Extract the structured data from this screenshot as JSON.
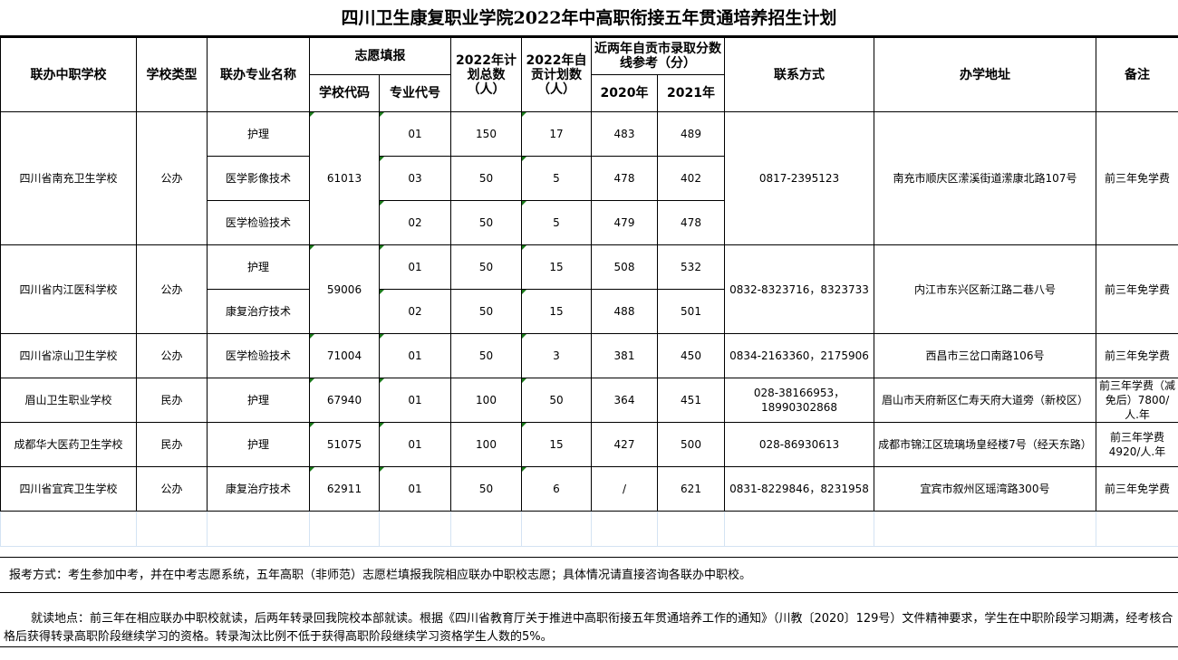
{
  "title": "四川卫生康复职业学院2022年中高职衔接五年贯通培养招生计划",
  "headers": {
    "school": "联办中职学校",
    "type": "学校类型",
    "major": "联办专业名称",
    "application": "志愿填报",
    "school_code": "学校代码",
    "major_code": "专业代号",
    "total": "2022年计划总数（人）",
    "self": "2022年自贡计划数（人）",
    "scores": "近两年自贡市录取分数线参考（分）",
    "y2020": "2020年",
    "y2021": "2021年",
    "contact": "联系方式",
    "address": "办学地址",
    "note": "备注"
  },
  "schools": [
    {
      "name": "四川省南充卫生学校",
      "type": "公办",
      "code": "61013",
      "contact": "0817-2395123",
      "address": "南充市顺庆区潆溪街道潆康北路107号",
      "note": "前三年免学费",
      "majors": [
        {
          "name": "护理",
          "major_code": "01",
          "total": "150",
          "self": "17",
          "y2020": "483",
          "y2021": "489"
        },
        {
          "name": "医学影像技术",
          "major_code": "03",
          "total": "50",
          "self": "5",
          "y2020": "478",
          "y2021": "402"
        },
        {
          "name": "医学检验技术",
          "major_code": "02",
          "total": "50",
          "self": "5",
          "y2020": "479",
          "y2021": "478"
        }
      ]
    },
    {
      "name": "四川省内江医科学校",
      "type": "公办",
      "code": "59006",
      "contact": "0832-8323716，8323733",
      "address": "内江市东兴区新江路二巷八号",
      "note": "前三年免学费",
      "majors": [
        {
          "name": "护理",
          "major_code": "01",
          "total": "50",
          "self": "15",
          "y2020": "508",
          "y2021": "532"
        },
        {
          "name": "康复治疗技术",
          "major_code": "02",
          "total": "50",
          "self": "15",
          "y2020": "488",
          "y2021": "501"
        }
      ]
    },
    {
      "name": "四川省凉山卫生学校",
      "type": "公办",
      "code": "71004",
      "contact": "0834-2163360，2175906",
      "address": "西昌市三岔口南路106号",
      "note": "前三年免学费",
      "majors": [
        {
          "name": "医学检验技术",
          "major_code": "01",
          "total": "50",
          "self": "3",
          "y2020": "381",
          "y2021": "450"
        }
      ]
    },
    {
      "name": "眉山卫生职业学校",
      "type": "民办",
      "code": "67940",
      "contact": "028-38166953，18990302868",
      "address": "眉山市天府新区仁寿天府大道旁（新校区）",
      "note": "前三年学费（减免后）7800/人.年",
      "majors": [
        {
          "name": "护理",
          "major_code": "01",
          "total": "100",
          "self": "50",
          "y2020": "364",
          "y2021": "451"
        }
      ]
    },
    {
      "name": "成都华大医药卫生学校",
      "type": "民办",
      "code": "51075",
      "contact": "028-86930613",
      "address": "成都市锦江区琉璃场皇经楼7号（经天东路）",
      "note": "前三年学费4920/人.年",
      "majors": [
        {
          "name": "护理",
          "major_code": "01",
          "total": "100",
          "self": "15",
          "y2020": "427",
          "y2021": "500"
        }
      ]
    },
    {
      "name": "四川省宜宾卫生学校",
      "type": "公办",
      "code": "62911",
      "contact": "0831-8229846，8231958",
      "address": "宜宾市叙州区瑶湾路300号",
      "note": "前三年免学费",
      "majors": [
        {
          "name": "康复治疗技术",
          "major_code": "01",
          "total": "50",
          "self": "6",
          "y2020": "/",
          "y2021": "621"
        }
      ]
    }
  ],
  "notes": {
    "apply": "报考方式：考生参加中考，并在中考志愿系统，五年高职（非师范）志愿栏填报我院相应联办中职校志愿；具体情况请直接咨询各联办中职校。",
    "study": "就读地点：前三年在相应联办中职校就读，后两年转录回我院校本部就读。根据《四川省教育厅关于推进中高职衔接五年贯通培养工作的通知》（川教〔2020〕129号）文件精神要求，学生在中职阶段学习期满，经考核合格后获得转录高职阶段继续学习的资格。转录淘汰比例不低于获得高职阶段继续学习资格学生人数的5%。"
  }
}
